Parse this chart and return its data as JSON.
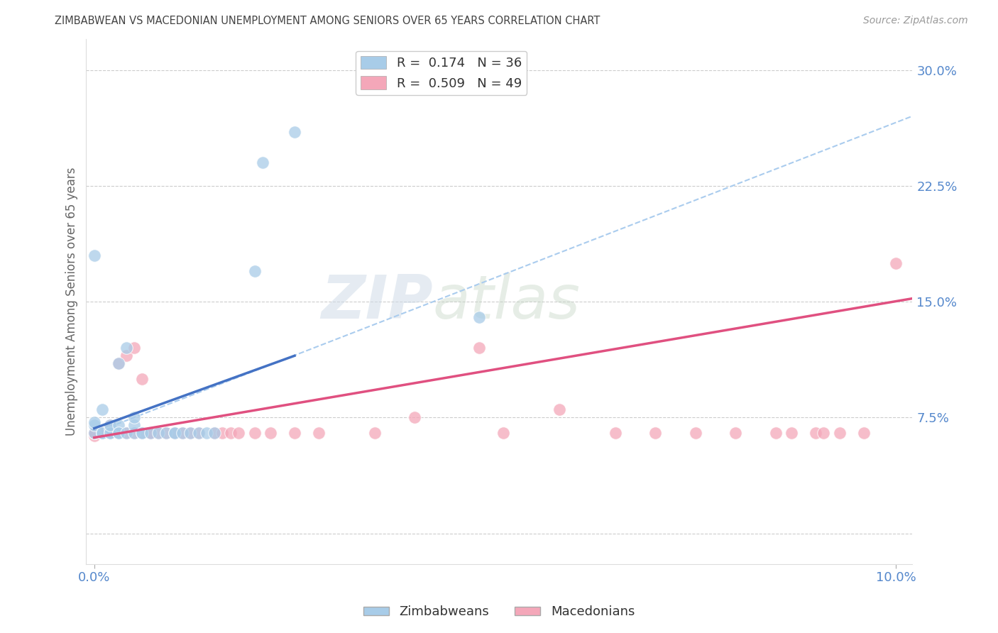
{
  "title": "ZIMBABWEAN VS MACEDONIAN UNEMPLOYMENT AMONG SENIORS OVER 65 YEARS CORRELATION CHART",
  "source": "Source: ZipAtlas.com",
  "ylabel": "Unemployment Among Seniors over 65 years",
  "y_ticks": [
    0.0,
    0.075,
    0.15,
    0.225,
    0.3
  ],
  "y_tick_labels_right": [
    "",
    "7.5%",
    "15.0%",
    "22.5%",
    "30.0%"
  ],
  "xlim": [
    -0.001,
    0.102
  ],
  "ylim": [
    -0.02,
    0.32
  ],
  "watermark_zip": "ZIP",
  "watermark_atlas": "atlas",
  "blue_scatter_color": "#a8cce8",
  "pink_scatter_color": "#f4a7b9",
  "blue_line_color": "#4472c4",
  "pink_line_color": "#e05080",
  "dashed_line_color": "#aaccee",
  "background_color": "#ffffff",
  "grid_color": "#cccccc",
  "title_color": "#444444",
  "axis_label_color": "#5588cc",
  "ylabel_color": "#666666",
  "zimbabwean_x": [
    0.0,
    0.0,
    0.0,
    0.001,
    0.001,
    0.001,
    0.002,
    0.002,
    0.002,
    0.002,
    0.003,
    0.003,
    0.003,
    0.003,
    0.004,
    0.004,
    0.005,
    0.005,
    0.005,
    0.006,
    0.006,
    0.007,
    0.008,
    0.009,
    0.01,
    0.01,
    0.011,
    0.012,
    0.013,
    0.014,
    0.015,
    0.02,
    0.021,
    0.025,
    0.048,
    0.0
  ],
  "zimbabwean_y": [
    0.065,
    0.07,
    0.072,
    0.065,
    0.065,
    0.08,
    0.065,
    0.068,
    0.065,
    0.07,
    0.065,
    0.07,
    0.11,
    0.065,
    0.065,
    0.12,
    0.065,
    0.07,
    0.075,
    0.065,
    0.065,
    0.065,
    0.065,
    0.065,
    0.065,
    0.065,
    0.065,
    0.065,
    0.065,
    0.065,
    0.065,
    0.17,
    0.24,
    0.26,
    0.14,
    0.18
  ],
  "macedonian_x": [
    0.0,
    0.0,
    0.0,
    0.0,
    0.001,
    0.001,
    0.002,
    0.002,
    0.002,
    0.003,
    0.003,
    0.004,
    0.004,
    0.005,
    0.005,
    0.006,
    0.006,
    0.007,
    0.007,
    0.008,
    0.009,
    0.01,
    0.011,
    0.012,
    0.013,
    0.015,
    0.016,
    0.017,
    0.018,
    0.02,
    0.022,
    0.025,
    0.028,
    0.035,
    0.04,
    0.048,
    0.051,
    0.058,
    0.065,
    0.07,
    0.075,
    0.08,
    0.085,
    0.087,
    0.09,
    0.091,
    0.093,
    0.096,
    0.1
  ],
  "macedonian_y": [
    0.065,
    0.063,
    0.065,
    0.065,
    0.065,
    0.065,
    0.065,
    0.065,
    0.07,
    0.065,
    0.11,
    0.065,
    0.115,
    0.065,
    0.12,
    0.065,
    0.1,
    0.065,
    0.065,
    0.065,
    0.065,
    0.065,
    0.065,
    0.065,
    0.065,
    0.065,
    0.065,
    0.065,
    0.065,
    0.065,
    0.065,
    0.065,
    0.065,
    0.065,
    0.075,
    0.12,
    0.065,
    0.08,
    0.065,
    0.065,
    0.065,
    0.065,
    0.065,
    0.065,
    0.065,
    0.065,
    0.065,
    0.065,
    0.175
  ],
  "zim_line_x0": 0.0,
  "zim_line_x1": 0.025,
  "zim_line_y0": 0.068,
  "zim_line_y1": 0.115,
  "mac_line_x0": 0.0,
  "mac_line_x1": 0.102,
  "mac_line_y0": 0.062,
  "mac_line_y1": 0.152,
  "dash_line_x0": 0.0,
  "dash_line_x1": 0.102,
  "dash_line_y0": 0.065,
  "dash_line_y1": 0.27
}
